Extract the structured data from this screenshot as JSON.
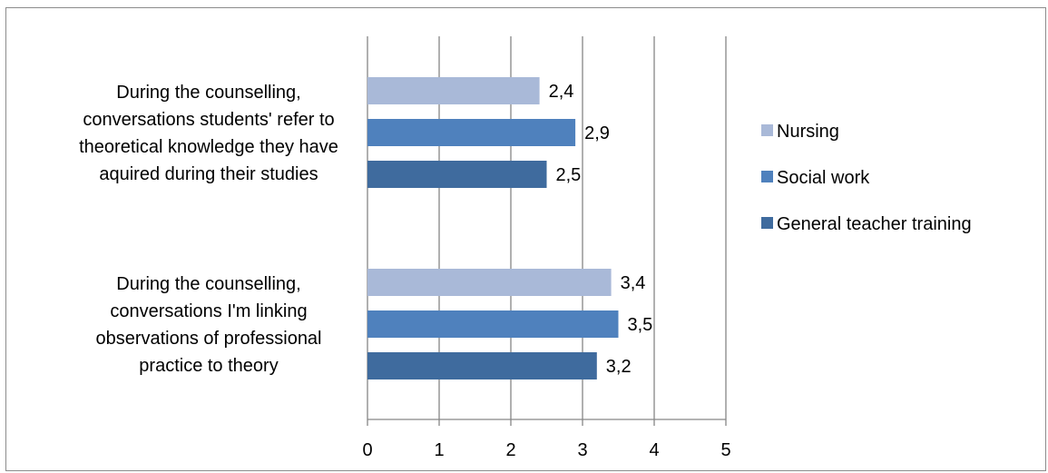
{
  "chart_data": {
    "type": "bar",
    "orientation": "horizontal",
    "categories": [
      [
        "During the counselling,",
        "conversations students' refer to",
        "theoretical knowledge they have",
        "aquired during their studies"
      ],
      [
        "During the counselling,",
        "conversations I'm  linking",
        "observations of professional",
        "practice to theory"
      ]
    ],
    "series": [
      {
        "name": "Nursing",
        "color": "#a9b9d8",
        "values": [
          2.4,
          3.4
        ],
        "labels": [
          "2,4",
          "3,4"
        ]
      },
      {
        "name": "Social work",
        "color": "#4f81bd",
        "values": [
          2.9,
          3.5
        ],
        "labels": [
          "2,9",
          "3,5"
        ]
      },
      {
        "name": "General teacher training",
        "color": "#3f6b9e",
        "values": [
          2.5,
          3.2
        ],
        "labels": [
          "2,5",
          "3,2"
        ]
      }
    ],
    "xlim": [
      0,
      5
    ],
    "xticks": [
      "0",
      "1",
      "2",
      "3",
      "4",
      "5"
    ],
    "grid": true,
    "legend": "right"
  }
}
